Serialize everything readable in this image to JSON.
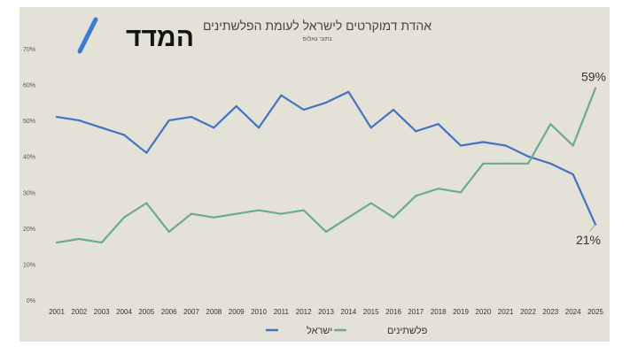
{
  "logo": {
    "text": "המדד",
    "accent_color": "#3a7bd5"
  },
  "chart_data": {
    "type": "line",
    "title": "אהדת דמוקרטים לישראל לעומת הפלשתינים",
    "subtitle": "נתוני גאלופ",
    "x": [
      "2001",
      "2002",
      "2003",
      "2004",
      "2005",
      "2006",
      "2007",
      "2008",
      "2009",
      "2010",
      "2011",
      "2012",
      "2013",
      "2014",
      "2015",
      "2016",
      "2017",
      "2018",
      "2019",
      "2020",
      "2021",
      "2022",
      "2023",
      "2024",
      "2025"
    ],
    "ylim": [
      0,
      70
    ],
    "yticks": [
      0,
      10,
      20,
      30,
      40,
      50,
      60,
      70
    ],
    "ytick_labels": [
      "0%",
      "10%",
      "20%",
      "30%",
      "40%",
      "50%",
      "60%",
      "70%"
    ],
    "grid": false,
    "legend_position": "bottom",
    "series": [
      {
        "name": "ישראל",
        "color": "#4472c4",
        "values": [
          51,
          50,
          48,
          46,
          41,
          50,
          51,
          48,
          54,
          48,
          57,
          53,
          55,
          58,
          48,
          53,
          47,
          49,
          43,
          44,
          43,
          40,
          38,
          35,
          21
        ]
      },
      {
        "name": "פלשתינים",
        "color": "#6aaa96",
        "values": [
          16,
          17,
          16,
          23,
          27,
          19,
          24,
          23,
          24,
          25,
          24,
          25,
          19,
          23,
          27,
          23,
          29,
          31,
          30,
          38,
          38,
          38,
          49,
          43,
          59
        ]
      }
    ],
    "annotations": [
      {
        "text": "59%",
        "series": "פלשתינים",
        "x": "2025",
        "value": 59
      },
      {
        "text": "21%",
        "series": "ישראל",
        "x": "2025",
        "value": 21
      }
    ]
  }
}
